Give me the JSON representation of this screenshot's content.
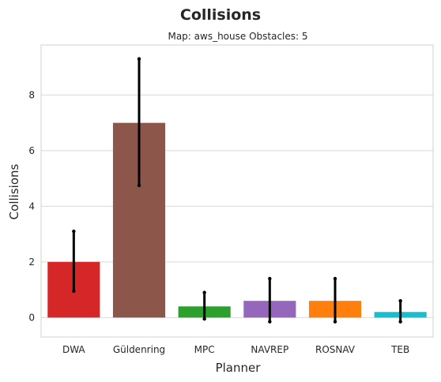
{
  "chart_data": {
    "type": "bar",
    "title": "Collisions",
    "subtitle": "Map: aws_house Obstacles: 5",
    "xlabel": "Planner",
    "ylabel": "Collisions",
    "categories": [
      "DWA",
      "Güldenring",
      "MPC",
      "NAVREP",
      "ROSNAV",
      "TEB"
    ],
    "values": [
      2.0,
      7.0,
      0.4,
      0.6,
      0.6,
      0.2
    ],
    "error_low": [
      0.95,
      4.75,
      -0.05,
      -0.15,
      -0.15,
      -0.15
    ],
    "error_high": [
      3.1,
      9.3,
      0.9,
      1.4,
      1.4,
      0.6
    ],
    "colors": [
      "#d62728",
      "#8c564b",
      "#2ca02c",
      "#9467bd",
      "#ff7f0e",
      "#17becf"
    ],
    "error_color": "#000000",
    "ylim": [
      -0.7,
      9.8
    ],
    "yticks": [
      0,
      2,
      4,
      6,
      8
    ],
    "grid": true
  }
}
